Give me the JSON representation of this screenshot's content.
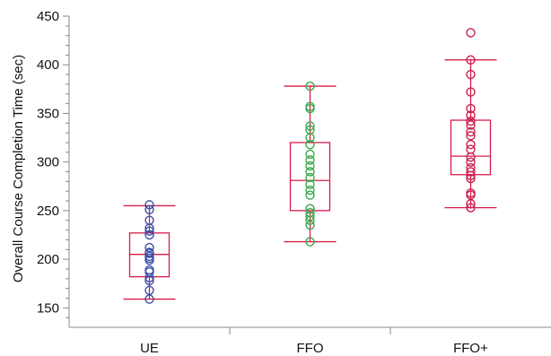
{
  "chart_data": {
    "type": "box",
    "title": "",
    "xlabel": "",
    "ylabel": "Overall Course Completion Time (sec)",
    "ylim": [
      130,
      450
    ],
    "yticks": [
      150,
      200,
      250,
      300,
      350,
      400,
      450
    ],
    "box_color": "#d81b4a",
    "groups": [
      {
        "category": "UE",
        "point_color": "#3b4fa8",
        "whisker_low": 159,
        "q1": 182,
        "median": 205,
        "q3": 227,
        "whisker_high": 255,
        "points": [
          159,
          168,
          178,
          181,
          187,
          189,
          199,
          201,
          203,
          206,
          207,
          212,
          225,
          229,
          232,
          240,
          251,
          256
        ]
      },
      {
        "category": "FFO",
        "point_color": "#3aa84a",
        "whisker_low": 218,
        "q1": 250,
        "median": 281,
        "q3": 320,
        "whisker_high": 378,
        "points": [
          218,
          235,
          240,
          244,
          248,
          252,
          266,
          271,
          277,
          284,
          290,
          296,
          302,
          308,
          318,
          325,
          333,
          337,
          355,
          357,
          378
        ]
      },
      {
        "category": "FFO+",
        "point_color": "#c8204e",
        "whisker_low": 253,
        "q1": 287,
        "median": 306,
        "q3": 343,
        "whisker_high": 405,
        "points": [
          253,
          257,
          266,
          268,
          283,
          286,
          290,
          294,
          300,
          305,
          313,
          318,
          327,
          331,
          338,
          342,
          348,
          355,
          372,
          390,
          405,
          433
        ]
      }
    ]
  }
}
